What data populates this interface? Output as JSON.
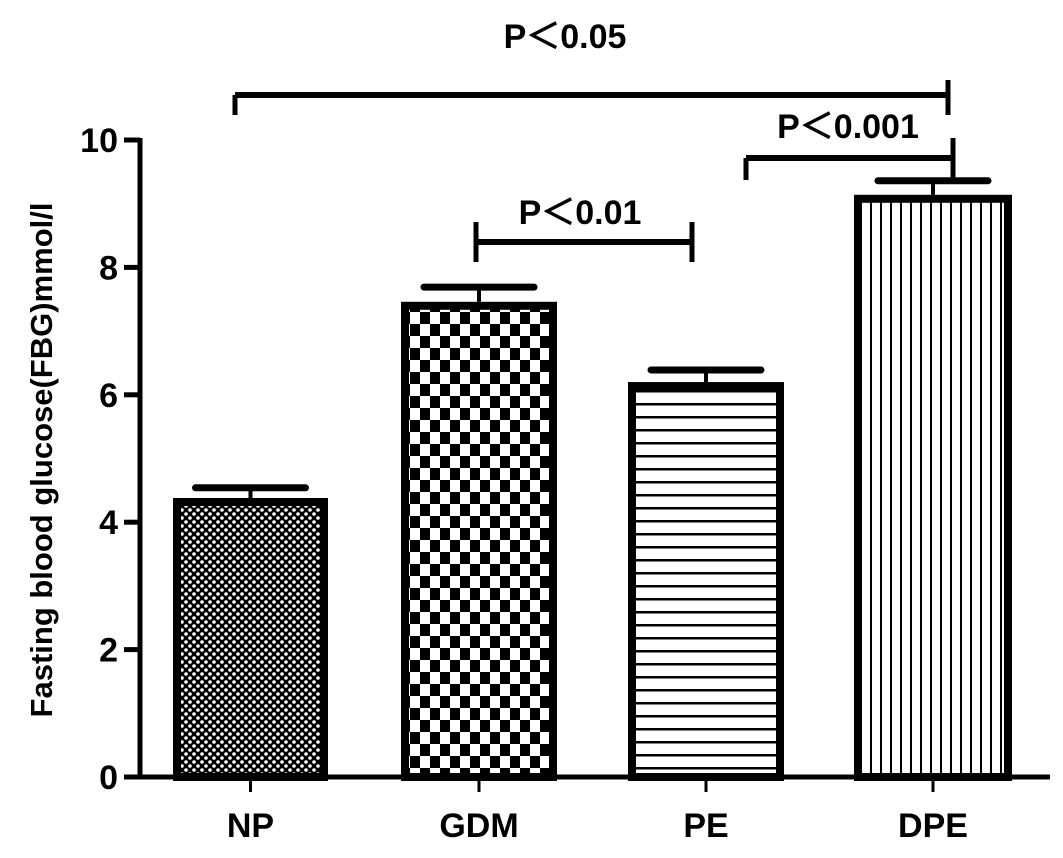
{
  "chart_data": {
    "type": "bar",
    "title": "",
    "xlabel": "",
    "ylabel": "Fasting blood glucose(FBG)mmol/l",
    "ylim": [
      0,
      10
    ],
    "yticks": [
      "0",
      "2",
      "4",
      "6",
      "8",
      "10"
    ],
    "categories": [
      "NP",
      "GDM",
      "PE",
      "DPE"
    ],
    "values": [
      4.38,
      7.46,
      6.2,
      9.14
    ],
    "error_upper": [
      4.54,
      7.69,
      6.39,
      9.36
    ],
    "patterns": [
      "fine-checker",
      "checker",
      "horizontal-lines",
      "vertical-lines"
    ],
    "grid": false,
    "annotations": [
      {
        "text": "P＜0.05",
        "from": "NP",
        "to": "DPE"
      },
      {
        "text": "P＜0.01",
        "from": "GDM",
        "to": "PE"
      },
      {
        "text": "P＜0.001",
        "from": "PE",
        "to": "DPE"
      }
    ]
  }
}
